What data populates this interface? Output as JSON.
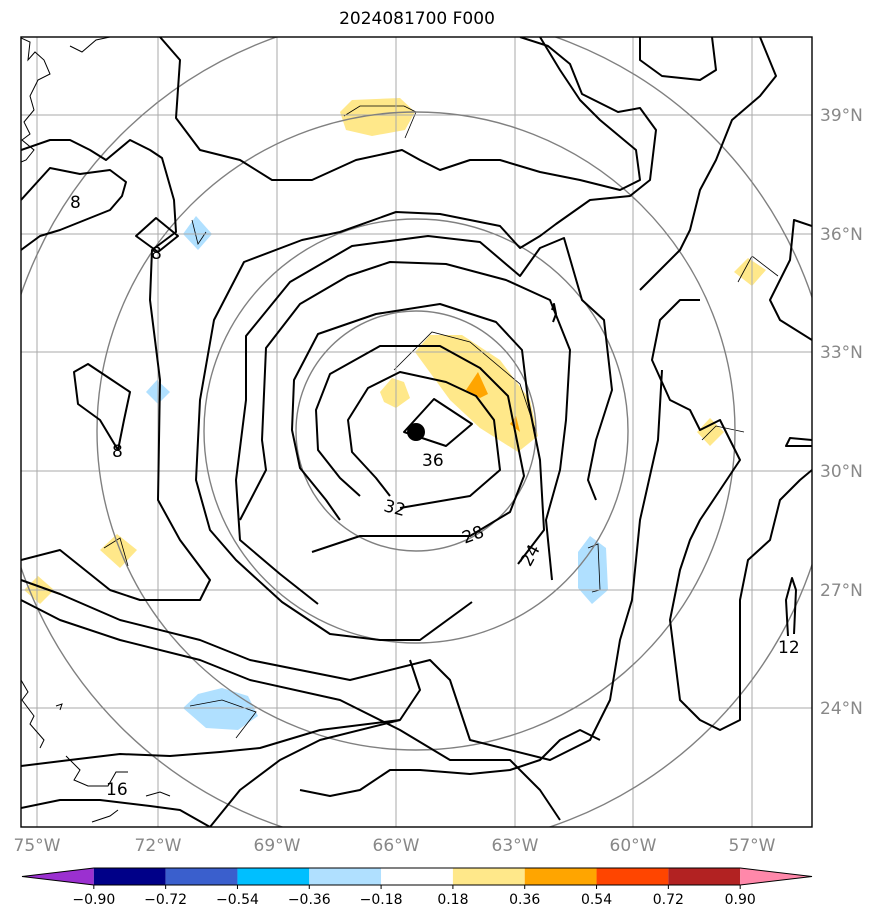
{
  "title": "2024081700 F000",
  "lon_labels": [
    "75°W",
    "72°W",
    "69°W",
    "66°W",
    "63°W",
    "60°W",
    "57°W"
  ],
  "lat_labels": [
    "39°N",
    "36°N",
    "33°N",
    "30°N",
    "27°N",
    "24°N"
  ],
  "contour_labels": [
    "8",
    "8",
    "8",
    "36",
    "32",
    "28",
    "24",
    "12",
    "16"
  ],
  "colorbar": {
    "colors": [
      "#9b30d0",
      "#000088",
      "#3a5fcd",
      "#00bfff",
      "#b0e0ff",
      "#ffffff",
      "#ffe88a",
      "#ffa500",
      "#ff4500",
      "#b22222",
      "#ff88aa"
    ],
    "tick_labels": [
      "−0.90",
      "−0.72",
      "−0.54",
      "−0.36",
      "−0.18",
      "0.18",
      "0.36",
      "0.54",
      "0.72",
      "0.90"
    ]
  },
  "storm_center_marker": "black-dot"
}
